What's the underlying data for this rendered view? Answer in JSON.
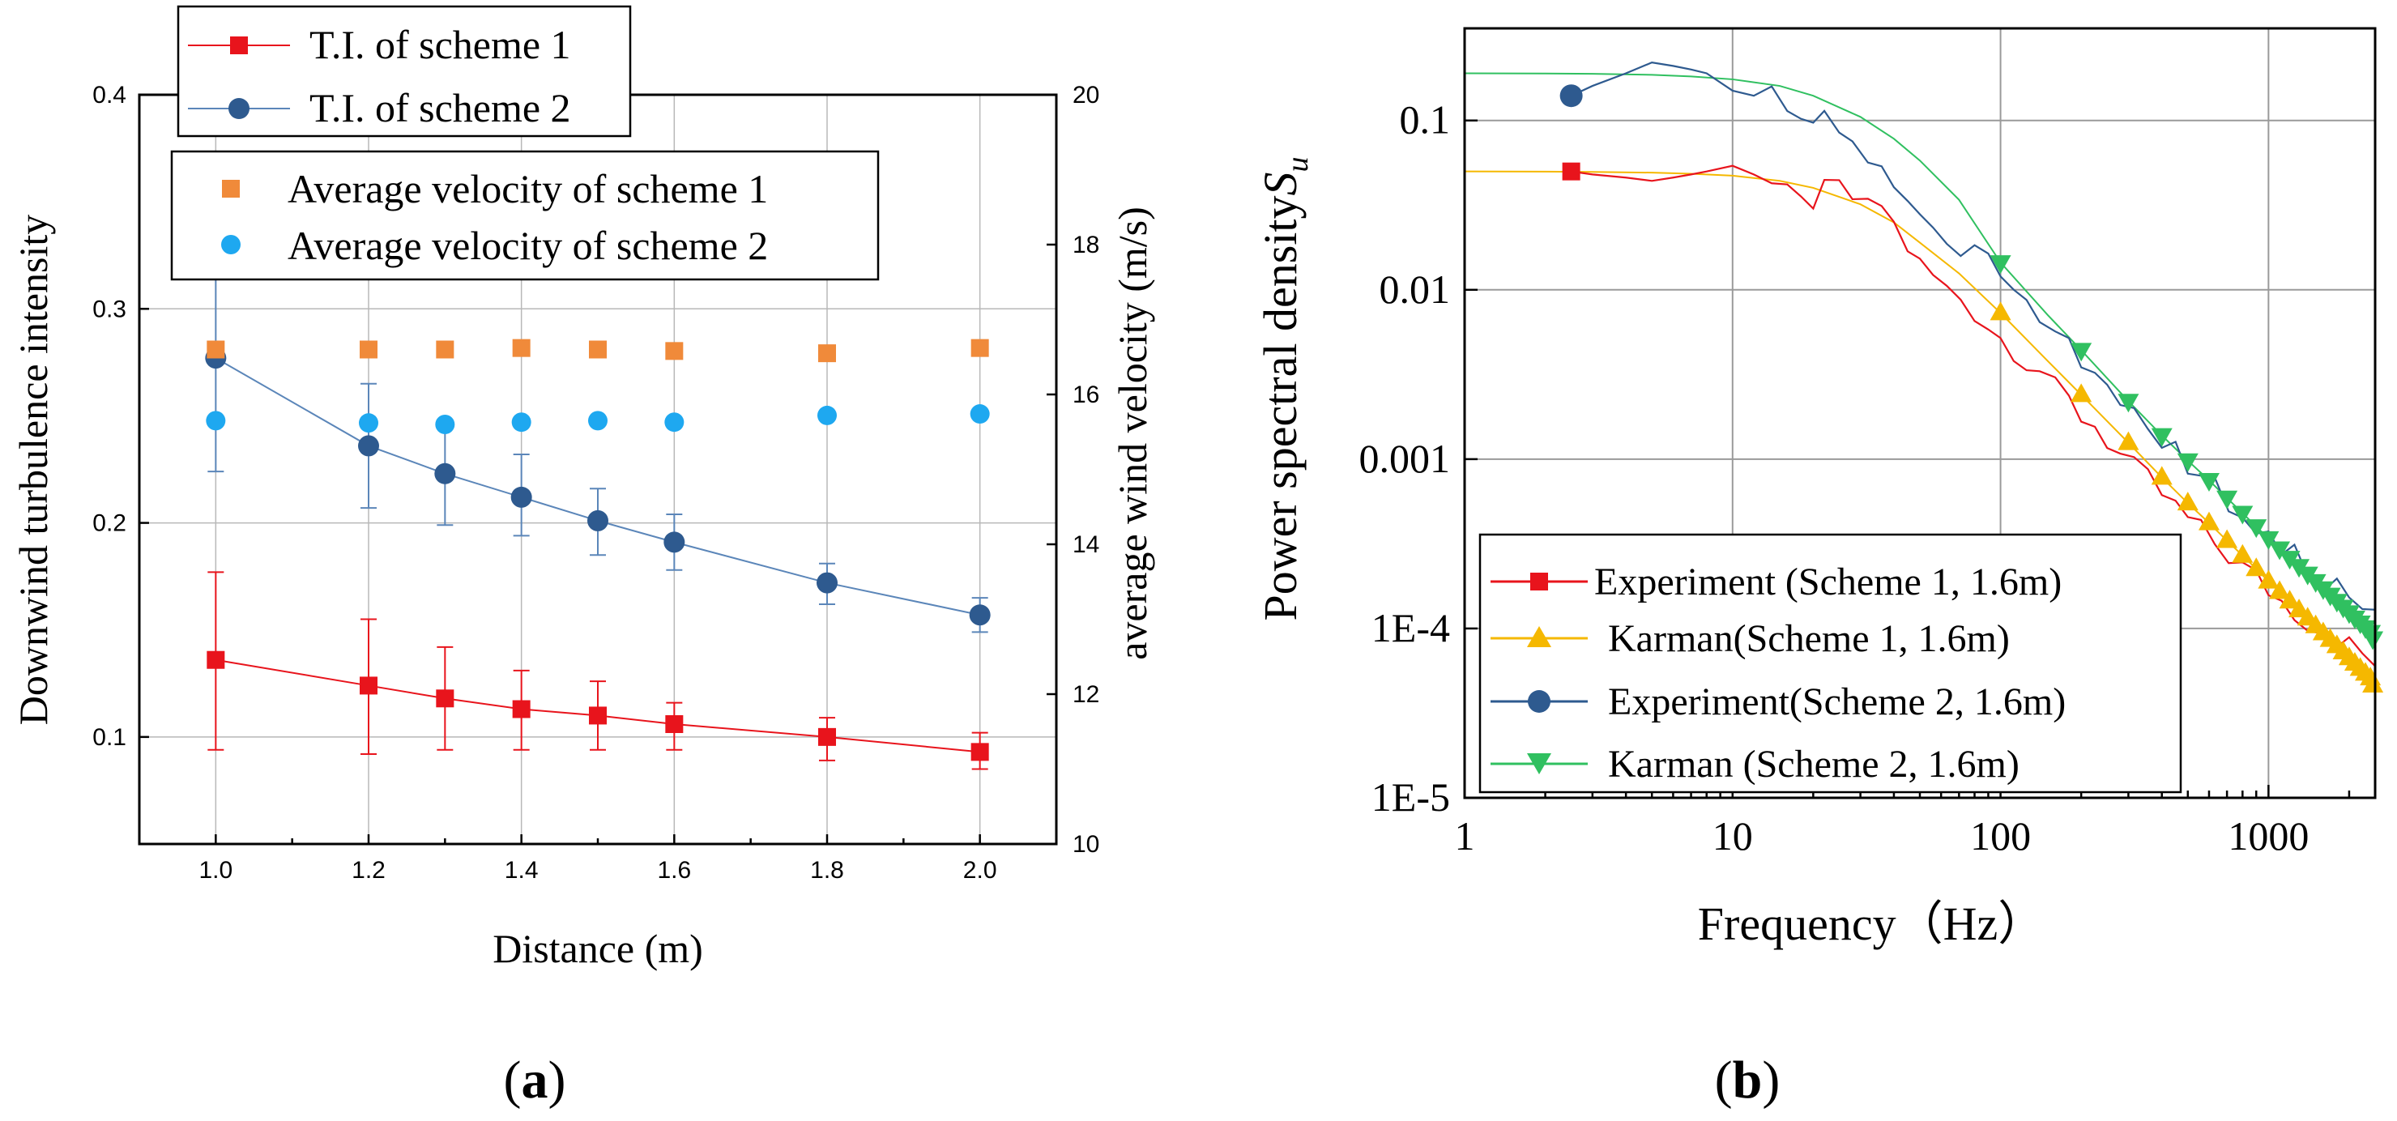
{
  "colors": {
    "scheme1_ti": "#e8141c",
    "scheme2_ti": "#2e5a8f",
    "scheme2_ti_line": "#5b86b9",
    "scheme1_vel": "#f08a3a",
    "scheme2_vel": "#1ea8f0",
    "exp1": "#e8141c",
    "karman1": "#f5b800",
    "exp2": "#2e5a8f",
    "karman2": "#30c060"
  },
  "panel_labels": {
    "a": "(a)",
    "a_letter": "a",
    "b": "(b)",
    "b_letter": "b"
  },
  "chart_data": [
    {
      "id": "a",
      "type": "line",
      "title": "",
      "xlabel": "Distance (m)",
      "ylabel": "Downwind turbulence intensity",
      "y2label": "average wind velocity (m/s)",
      "xlim": [
        0.9,
        2.1
      ],
      "ylim": [
        0.05,
        0.4
      ],
      "y2lim": [
        10,
        20
      ],
      "xticks": [
        "1.0",
        "1.2",
        "1.4",
        "1.6",
        "1.8",
        "2.0"
      ],
      "xtick_values": [
        1.0,
        1.2,
        1.4,
        1.6,
        1.8,
        2.0
      ],
      "yticks": [
        "0.1",
        "0.2",
        "0.3",
        "0.4"
      ],
      "ytick_values": [
        0.1,
        0.2,
        0.3,
        0.4
      ],
      "y2ticks": [
        "10",
        "12",
        "14",
        "16",
        "18",
        "20"
      ],
      "y2tick_values": [
        10,
        12,
        14,
        16,
        18,
        20
      ],
      "grid": true,
      "x": [
        1.0,
        1.2,
        1.3,
        1.4,
        1.5,
        1.6,
        1.8,
        2.0
      ],
      "series": [
        {
          "name": "T.I. of scheme 1",
          "axis": "left",
          "marker": "square",
          "line": true,
          "values": [
            0.136,
            0.124,
            0.118,
            0.113,
            0.11,
            0.106,
            0.1,
            0.093
          ],
          "err_low": [
            0.094,
            0.092,
            0.094,
            0.094,
            0.094,
            0.094,
            0.089,
            0.085
          ],
          "err_high": [
            0.177,
            0.155,
            0.142,
            0.131,
            0.126,
            0.116,
            0.109,
            0.102
          ]
        },
        {
          "name": "T.I. of scheme 2",
          "axis": "left",
          "marker": "circle",
          "line": true,
          "values": [
            0.277,
            0.236,
            0.223,
            0.212,
            0.201,
            0.191,
            0.172,
            0.157
          ],
          "err_low": [
            0.224,
            0.207,
            0.199,
            0.194,
            0.185,
            0.178,
            0.162,
            0.149
          ],
          "err_high": [
            0.331,
            0.265,
            0.245,
            0.232,
            0.216,
            0.204,
            0.181,
            0.165
          ]
        },
        {
          "name": "Average velocity of scheme 1",
          "axis": "right",
          "marker": "square",
          "line": false,
          "values": [
            16.6,
            16.6,
            16.6,
            16.62,
            16.6,
            16.58,
            16.55,
            16.62
          ]
        },
        {
          "name": "Average velocity of scheme 2",
          "axis": "right",
          "marker": "circle",
          "line": false,
          "values": [
            15.65,
            15.62,
            15.6,
            15.63,
            15.65,
            15.63,
            15.72,
            15.74
          ]
        }
      ]
    },
    {
      "id": "b",
      "type": "line",
      "title": "",
      "xlabel": "Frequency（Hz）",
      "ylabel": "Power spectral density",
      "ylabel_symbol": "S",
      "ylabel_subscript": "u",
      "xscale": "log",
      "yscale": "log",
      "xlim": [
        1,
        2500
      ],
      "ylim": [
        1e-05,
        0.35
      ],
      "xticks": [
        "1",
        "10",
        "100",
        "1000"
      ],
      "xtick_values": [
        1,
        10,
        100,
        1000
      ],
      "yticks": [
        "1E-5",
        "1E-4",
        "0.001",
        "0.01",
        "0.1"
      ],
      "ytick_values": [
        1e-05,
        0.0001,
        0.001,
        0.01,
        0.1
      ],
      "grid": true,
      "legend_position": "bottom-left",
      "series": [
        {
          "name": "Experiment (Scheme 1, 1.6m)",
          "kind": "experiment",
          "marker": "square",
          "x": [
            2.5,
            3,
            4,
            5,
            6,
            7,
            8,
            10,
            12,
            14,
            16,
            18,
            20,
            22,
            25,
            28,
            32,
            36,
            40,
            45,
            50,
            56,
            63,
            71,
            80,
            90,
            100,
            112,
            125,
            140,
            160,
            180,
            200,
            225,
            250,
            280,
            315,
            355,
            400,
            450,
            500,
            560,
            630,
            710,
            800,
            900,
            1000,
            1120,
            1250,
            1400,
            1600,
            1800,
            2000,
            2240,
            2500
          ],
          "values": [
            0.05,
            0.048,
            0.046,
            0.044,
            0.046,
            0.048,
            0.05,
            0.054,
            0.048,
            0.042,
            0.036,
            0.032,
            0.034,
            0.038,
            0.04,
            0.035,
            0.03,
            0.032,
            0.024,
            0.018,
            0.014,
            0.012,
            0.01,
            0.009,
            0.0075,
            0.0062,
            0.0052,
            0.0046,
            0.0038,
            0.0034,
            0.0026,
            0.0022,
            0.0018,
            0.0016,
            0.0013,
            0.00105,
            0.00088,
            0.00076,
            0.00062,
            0.00052,
            0.00044,
            0.00038,
            0.00032,
            0.00027,
            0.00023,
            0.0002,
            0.00017,
            0.000145,
            0.000128,
            0.000112,
            0.0001,
            9e-05,
            8e-05,
            7e-05,
            6.2e-05
          ]
        },
        {
          "name": "Karman(Scheme 1, 1.6m)",
          "kind": "karman",
          "marker": "triangle-up",
          "x": [
            1,
            2,
            3,
            5,
            7,
            10,
            15,
            20,
            30,
            40,
            50,
            70,
            100,
            150,
            200,
            300,
            400,
            500,
            600,
            700,
            800,
            900,
            1000,
            1200,
            1400,
            1600,
            1800,
            2000,
            2200,
            2400,
            2500
          ],
          "values": [
            0.05,
            0.0499,
            0.0497,
            0.0492,
            0.0485,
            0.0472,
            0.044,
            0.04,
            0.032,
            0.025,
            0.019,
            0.0125,
            0.0073,
            0.0038,
            0.0024,
            0.00125,
            0.00078,
            0.00055,
            0.00042,
            0.00033,
            0.00027,
            0.000225,
            0.00019,
            0.000145,
            0.000115,
            9.4e-05,
            7.9e-05,
            6.7e-05,
            5.8e-05,
            5.1e-05,
            4.2e-05
          ]
        },
        {
          "name": "Experiment(Scheme 2, 1.6m)",
          "kind": "experiment",
          "marker": "circle",
          "x": [
            2.5,
            3,
            4,
            5,
            6,
            7,
            8,
            10,
            12,
            14,
            16,
            18,
            20,
            22,
            25,
            28,
            32,
            36,
            40,
            45,
            50,
            56,
            63,
            71,
            80,
            90,
            100,
            112,
            125,
            140,
            160,
            180,
            200,
            225,
            250,
            280,
            315,
            355,
            400,
            450,
            500,
            560,
            630,
            710,
            800,
            900,
            1000,
            1120,
            1250,
            1400,
            1600,
            1800,
            2000,
            2240,
            2500
          ],
          "values": [
            0.14,
            0.16,
            0.19,
            0.22,
            0.21,
            0.2,
            0.19,
            0.15,
            0.14,
            0.138,
            0.13,
            0.1,
            0.09,
            0.1,
            0.085,
            0.07,
            0.06,
            0.05,
            0.04,
            0.032,
            0.026,
            0.022,
            0.02,
            0.018,
            0.016,
            0.0145,
            0.0125,
            0.011,
            0.0092,
            0.0078,
            0.006,
            0.0048,
            0.0038,
            0.0032,
            0.0026,
            0.0021,
            0.0018,
            0.0015,
            0.00128,
            0.0011,
            0.00095,
            0.0008,
            0.00068,
            0.00058,
            0.0005,
            0.00042,
            0.00036,
            0.00031,
            0.00027,
            0.00024,
            0.0002,
            0.000175,
            0.000155,
            0.000135,
            0.00012
          ]
        },
        {
          "name": "Karman (Scheme 2, 1.6m)",
          "kind": "karman",
          "marker": "triangle-down",
          "x": [
            1,
            2,
            3,
            5,
            7,
            10,
            15,
            20,
            30,
            40,
            50,
            70,
            100,
            150,
            200,
            300,
            400,
            500,
            600,
            700,
            800,
            900,
            1000,
            1200,
            1400,
            1600,
            1800,
            2000,
            2200,
            2400,
            2500
          ],
          "values": [
            0.19,
            0.1895,
            0.1885,
            0.186,
            0.182,
            0.175,
            0.16,
            0.14,
            0.105,
            0.078,
            0.058,
            0.034,
            0.0145,
            0.0071,
            0.0044,
            0.0022,
            0.00138,
            0.00098,
            0.00075,
            0.00059,
            0.00048,
            0.0004,
            0.00034,
            0.00026,
            0.00021,
            0.000172,
            0.000145,
            0.000124,
            0.000108,
            9.5e-05,
            8e-05
          ]
        }
      ]
    }
  ]
}
